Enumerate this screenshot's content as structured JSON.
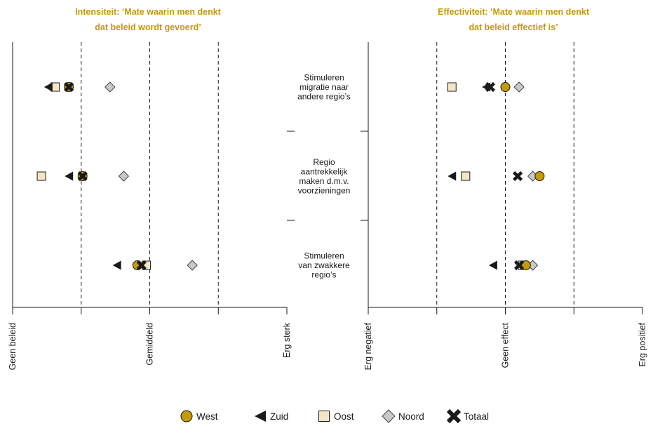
{
  "chart_data": [
    {
      "type": "scatter",
      "title_lines": [
        "Intensiteit: ‘Mate waarin men denkt",
        "dat beleid wordt gevoerd’"
      ],
      "xlim": [
        0,
        4
      ],
      "x_ticks": [
        0,
        1,
        2,
        3,
        4
      ],
      "x_tick_labels": [
        "Geen beleid",
        "",
        "Gemiddeld",
        "",
        "Erg sterk"
      ],
      "categories": [
        "Stimuleren migratie naar andere regio’s",
        "Regio aantrekkelijk maken d.m.v. voorzieningen",
        "Stimuleren van zwakkere regio’s"
      ],
      "series": [
        {
          "name": "West",
          "values": [
            0.82,
            1.02,
            1.82
          ]
        },
        {
          "name": "Zuid",
          "values": [
            0.52,
            0.82,
            1.52
          ]
        },
        {
          "name": "Oost",
          "values": [
            0.62,
            0.42,
            1.95
          ]
        },
        {
          "name": "Noord",
          "values": [
            1.42,
            1.62,
            2.62
          ]
        },
        {
          "name": "Totaal",
          "values": [
            0.82,
            1.02,
            1.88
          ]
        }
      ],
      "gridlines": "dashed vertical at 1, 2, 3"
    },
    {
      "type": "scatter",
      "title_lines": [
        "Effectiviteit: ‘Mate waarin men denkt",
        "dat beleid effectief is’"
      ],
      "xlim": [
        0,
        4
      ],
      "x_ticks": [
        0,
        1,
        2,
        3,
        4
      ],
      "x_tick_labels": [
        "Erg negatief",
        "",
        "Geen effect",
        "",
        "Erg positief"
      ],
      "categories": [
        "Stimuleren migratie naar andere regio’s",
        "Regio aantrekkelijk maken d.m.v. voorzieningen",
        "Stimuleren van zwakkere regio’s"
      ],
      "series": [
        {
          "name": "West",
          "values": [
            2.0,
            2.5,
            2.3
          ]
        },
        {
          "name": "Zuid",
          "values": [
            1.72,
            1.22,
            1.82
          ]
        },
        {
          "name": "Oost",
          "values": [
            1.22,
            1.42,
            2.25
          ]
        },
        {
          "name": "Noord",
          "values": [
            2.2,
            2.4,
            2.4
          ]
        },
        {
          "name": "Totaal",
          "values": [
            1.78,
            2.18,
            2.2
          ]
        }
      ],
      "gridlines": "dashed vertical at 1, 2, 3"
    }
  ],
  "center_labels": [
    [
      "Stimuleren",
      "migratie naar",
      "andere regio’s"
    ],
    [
      "Regio",
      "aantrekkelijk",
      "maken d.m.v.",
      "voorzieningen"
    ],
    [
      "Stimuleren",
      "van zwakkere",
      "regio’s"
    ]
  ],
  "legend": [
    {
      "name": "West",
      "icon": "circle-icon"
    },
    {
      "name": "Zuid",
      "icon": "left-triangle-icon"
    },
    {
      "name": "Oost",
      "icon": "square-icon"
    },
    {
      "name": "Noord",
      "icon": "diamond-icon"
    },
    {
      "name": "Totaal",
      "icon": "cross-icon"
    }
  ],
  "colors": {
    "title": "#c49a06",
    "west": "#c49a06",
    "zuid": "#1a1a1a",
    "oost": "#f4e6c4",
    "noord": "#c8c8c8",
    "totaal": "#1a1a1a"
  }
}
